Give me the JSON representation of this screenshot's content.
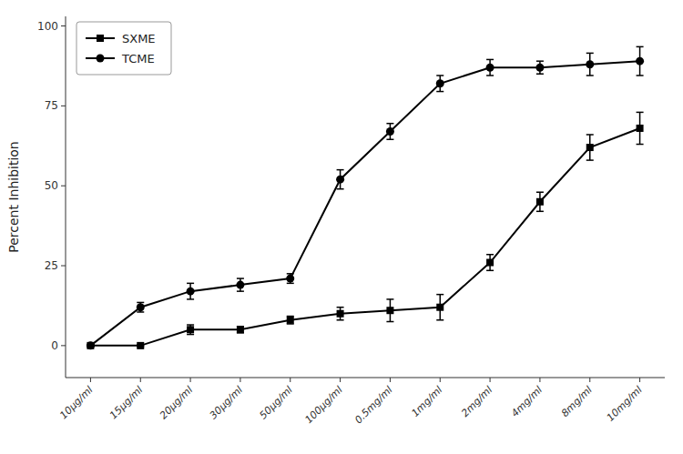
{
  "chart_data": {
    "type": "line",
    "categories": [
      "10µg/ml",
      "15µg/ml",
      "20µg/ml",
      "30µg/ml",
      "50µg/ml",
      "100µg/ml",
      "0.5mg/ml",
      "1mg/ml",
      "2mg/ml",
      "4mg/ml",
      "8mg/ml",
      "10mg/ml"
    ],
    "series": [
      {
        "name": "SXME",
        "color": "#000000",
        "marker": "square",
        "values": [
          0,
          0,
          5,
          5,
          8,
          10,
          11,
          12,
          26,
          45,
          62,
          68
        ],
        "errors": [
          0.3,
          0.3,
          1.5,
          1.0,
          1.2,
          2.0,
          3.5,
          4.0,
          2.5,
          3.0,
          4.0,
          5.0
        ]
      },
      {
        "name": "TCME",
        "color": "#000000",
        "marker": "circle",
        "values": [
          0,
          12,
          17,
          19,
          21,
          52,
          67,
          82,
          87,
          87,
          88,
          89
        ],
        "errors": [
          0.3,
          1.5,
          2.5,
          2.0,
          1.5,
          3.0,
          2.5,
          2.5,
          2.5,
          2.0,
          3.5,
          4.5
        ]
      }
    ],
    "ylabel": "Percent Inhibition",
    "ylim": [
      -10,
      103
    ],
    "yticks": [
      0,
      25,
      50,
      75,
      100
    ],
    "grid": false,
    "legend": "upper left"
  }
}
